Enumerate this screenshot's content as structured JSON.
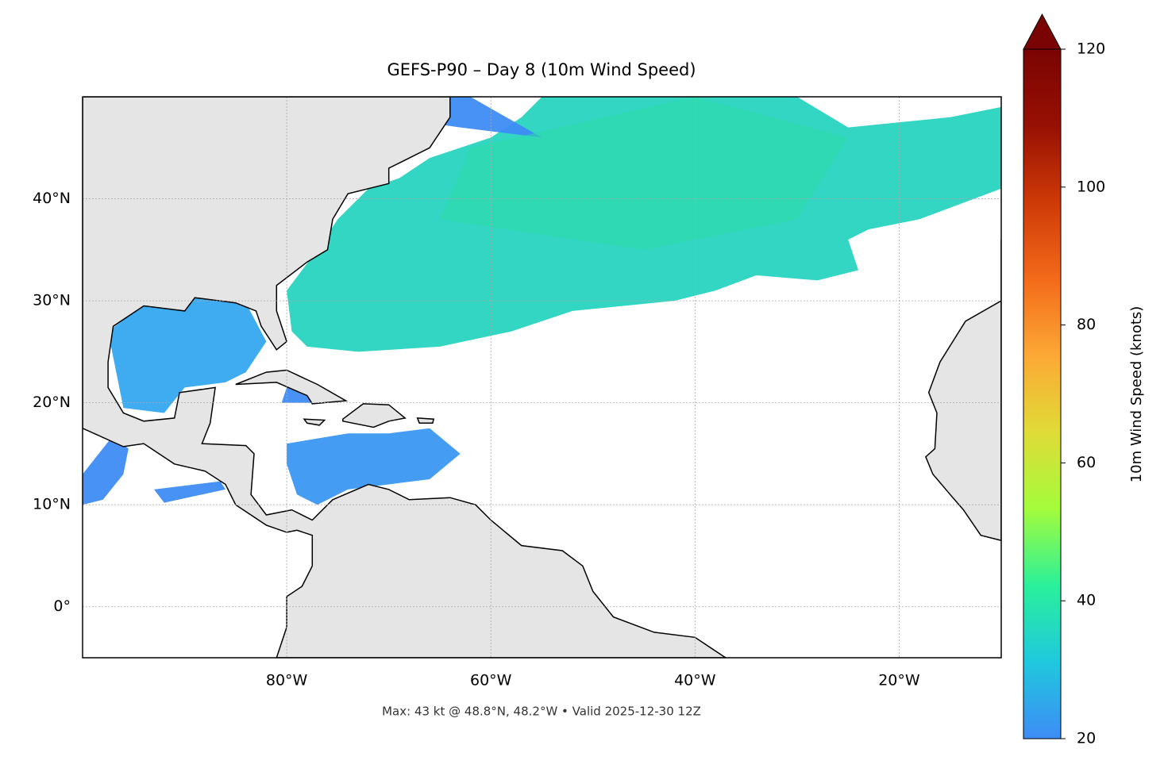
{
  "chart_data": {
    "type": "map",
    "title": "GEFS-P90 – Day 8 (10m Wind Speed)",
    "footer": "Max: 43 kt @ 48.8°N, 48.2°W • Valid 2025-12-30 12Z",
    "xlim": [
      -100,
      -10
    ],
    "ylim": [
      -5,
      50
    ],
    "xticks": [
      {
        "value": -80,
        "label": "80°W"
      },
      {
        "value": -60,
        "label": "60°W"
      },
      {
        "value": -40,
        "label": "40°W"
      },
      {
        "value": -20,
        "label": "20°W"
      }
    ],
    "yticks": [
      {
        "value": 0,
        "label": "0°"
      },
      {
        "value": 10,
        "label": "10°N"
      },
      {
        "value": 20,
        "label": "20°N"
      },
      {
        "value": 30,
        "label": "30°N"
      },
      {
        "value": 40,
        "label": "40°N"
      }
    ],
    "grid": true,
    "colorbar": {
      "label": "10m Wind Speed (knots)",
      "lim": [
        20,
        120
      ],
      "ticks": [
        20,
        40,
        60,
        80,
        100,
        120
      ],
      "extend": "max",
      "colormap": [
        "#3e8cf5",
        "#1fc8de",
        "#2af09a",
        "#a4fc3c",
        "#e0db37",
        "#fca835",
        "#f36a1a",
        "#ce3a07",
        "#971003",
        "#7a0403"
      ]
    }
  }
}
